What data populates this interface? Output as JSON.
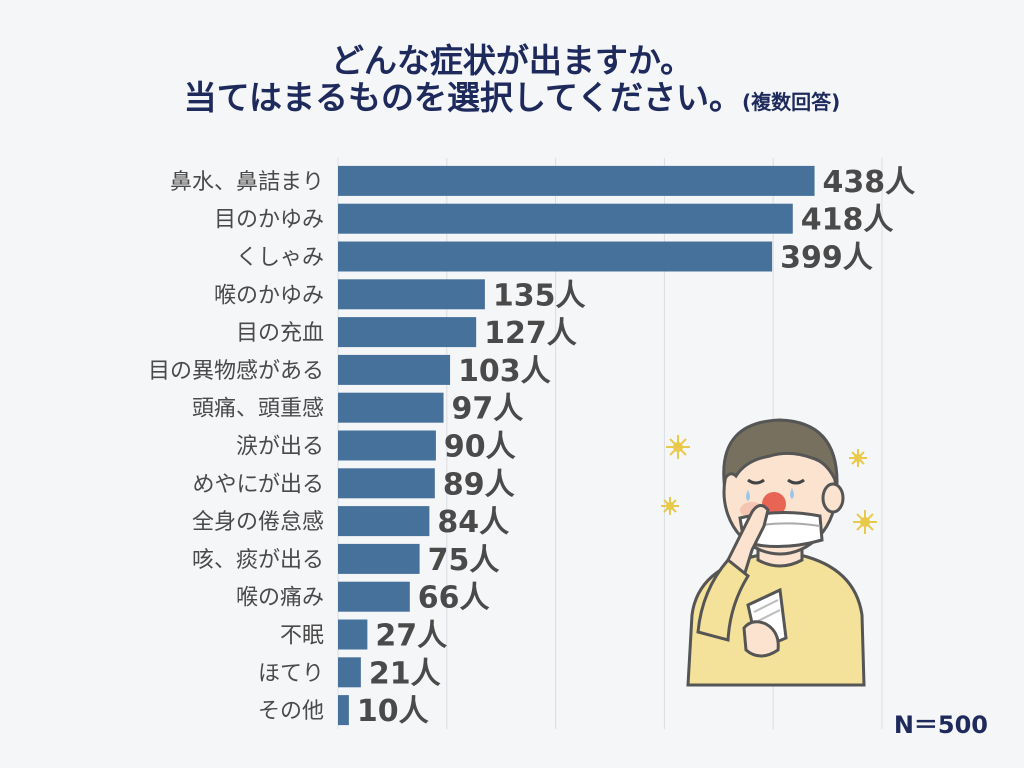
{
  "title": {
    "line1": "どんな症状が出ますか。",
    "line2": "当てはまるものを選択してください。",
    "note": "(複数回答)"
  },
  "sample": "N＝500",
  "colors": {
    "bar": "#46719b",
    "label": "#4a4a4a",
    "value": "#4a4a4a",
    "title": "#1e2a5c",
    "grid": "#d9dde3"
  },
  "chart_data": {
    "type": "bar",
    "orientation": "horizontal",
    "title": "どんな症状が出ますか。当てはまるものを選択してください。(複数回答)",
    "categories": [
      "鼻水、鼻詰まり",
      "目のかゆみ",
      "くしゃみ",
      "喉のかゆみ",
      "目の充血",
      "目の異物感がある",
      "頭痛、頭重感",
      "涙が出る",
      "めやにが出る",
      "全身の倦怠感",
      "咳、痰が出る",
      "喉の痛み",
      "不眠",
      "ほてり",
      "その他"
    ],
    "values": [
      438,
      418,
      399,
      135,
      127,
      103,
      97,
      90,
      89,
      84,
      75,
      66,
      27,
      21,
      10
    ],
    "value_labels": [
      "438人",
      "418人",
      "399人",
      "135人",
      "127人",
      "103人",
      "97人",
      "90人",
      "89人",
      "84人",
      "75人",
      "66人",
      "27人",
      "21人",
      "10人"
    ],
    "xlim": [
      0,
      500
    ],
    "gridlines": [
      0,
      100,
      200,
      300,
      400,
      500
    ],
    "xlabel": "",
    "ylabel": ""
  }
}
